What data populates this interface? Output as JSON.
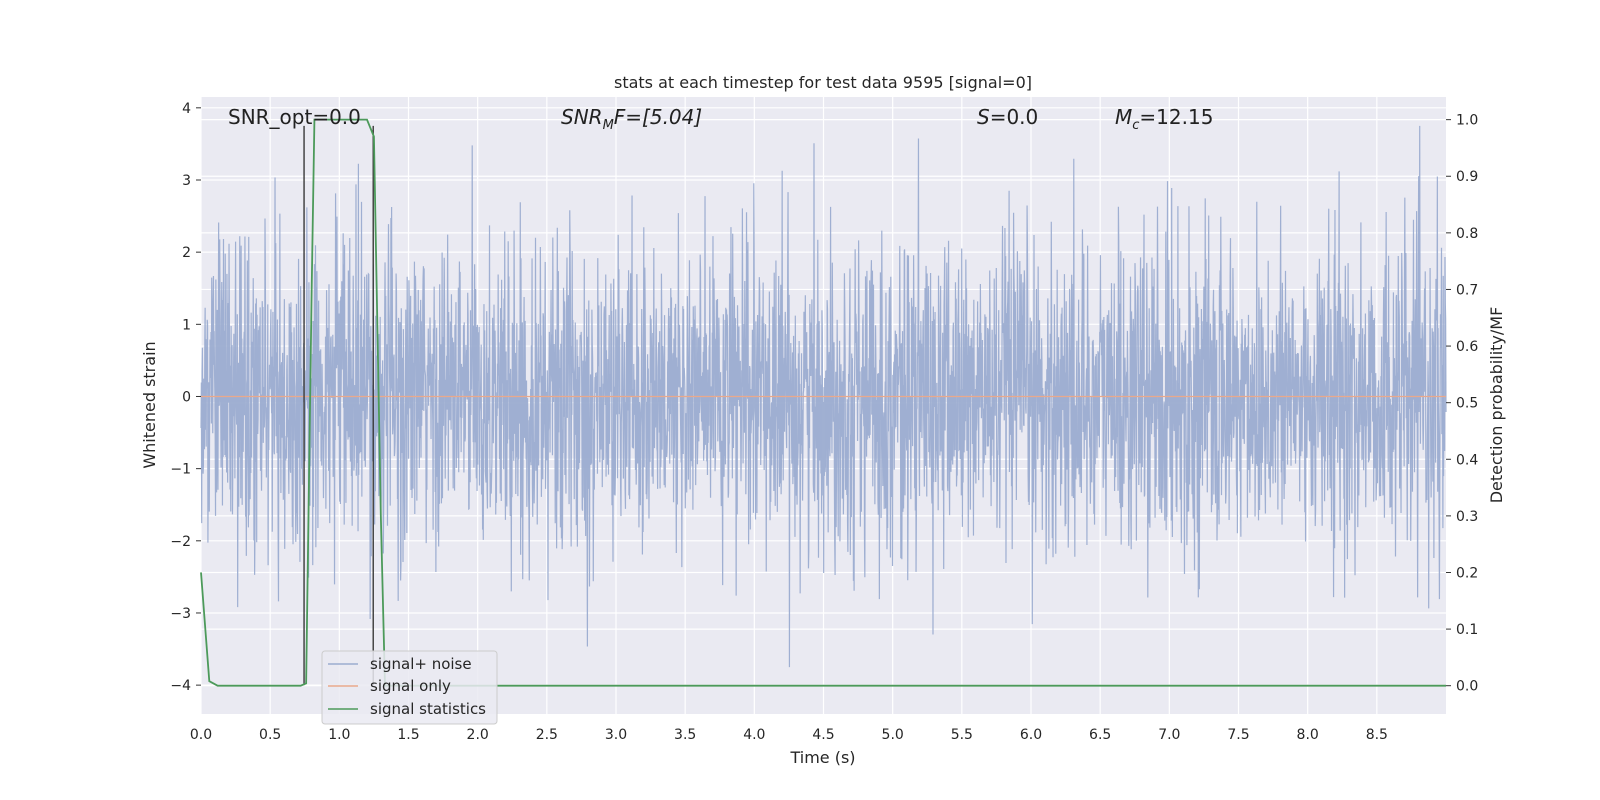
{
  "chart_data": {
    "type": "line",
    "title": "stats at each timestep for test data 9595 [signal=0]",
    "xlabel": "Time (s)",
    "ylabel": "Whitened strain",
    "y2label": "Detection probability/MF",
    "xlim": [
      0.0,
      9.0
    ],
    "ylim": [
      -4.4,
      4.15
    ],
    "y2lim": [
      -0.05,
      1.04
    ],
    "xticks": [
      "0.0",
      "0.5",
      "1.0",
      "1.5",
      "2.0",
      "2.5",
      "3.0",
      "3.5",
      "4.0",
      "4.5",
      "5.0",
      "5.5",
      "6.0",
      "6.5",
      "7.0",
      "7.5",
      "8.0",
      "8.5"
    ],
    "yticks": [
      "4",
      "3",
      "2",
      "1",
      "0",
      "−1",
      "−2",
      "−3",
      "−4"
    ],
    "y2ticks": [
      "1.0",
      "0.9",
      "0.8",
      "0.7",
      "0.6",
      "0.5",
      "0.4",
      "0.3",
      "0.2",
      "0.1",
      "0.0"
    ],
    "grid": true,
    "legend_position": "lower-left",
    "annotations": {
      "snr_opt": "SNR_opt=0.0",
      "snr_mf_main": "SNR",
      "snr_mf_sub": "M",
      "snr_mf_rest": "F=[5.04]",
      "s_italic": "S",
      "s_rest": "=0.0",
      "mc_main": "M",
      "mc_sub": "c",
      "mc_rest": "=12.15"
    },
    "vertical_lines_x": [
      0.745,
      1.245
    ],
    "series": [
      {
        "name": "signal+ noise",
        "color": "#9bacd0",
        "description_values": "Gaussian-like whitened noise, amplitude mostly between -2.5 and 2.5, peaks near ±3.7",
        "envelope_seed": 9595
      },
      {
        "name": "signal only",
        "color": "#e9a98c",
        "values_constant": 0.0
      },
      {
        "name": "signal statistics",
        "color": "#4c9a5a",
        "axis": "right",
        "x": [
          0.0,
          0.06,
          0.12,
          0.3,
          0.6,
          0.72,
          0.74,
          0.76,
          0.8,
          0.82,
          1.0,
          1.2,
          1.25,
          1.3,
          1.33,
          1.4,
          2.7,
          9.0
        ],
        "values": [
          0.2,
          0.008,
          0.0,
          0.0,
          0.0,
          0.0,
          0.002,
          0.004,
          0.7,
          1.0,
          1.0,
          1.0,
          0.97,
          0.3,
          0.0,
          0.0,
          0.0,
          0.0
        ]
      }
    ]
  }
}
